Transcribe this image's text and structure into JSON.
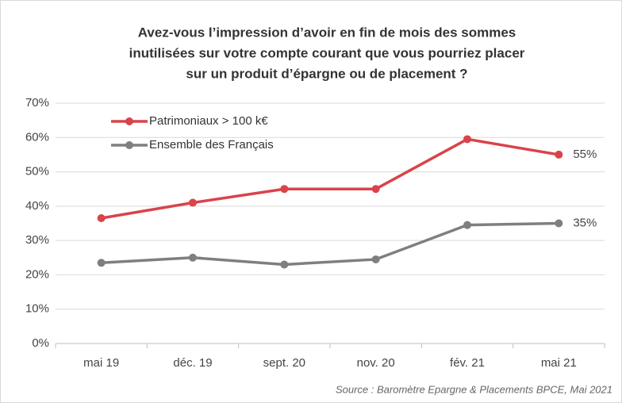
{
  "chart_data": {
    "type": "line",
    "title": [
      "Avez-vous l’impression d’avoir en fin de mois des sommes",
      "inutilisées sur votre compte courant que vous pourriez placer",
      "sur un produit d’épargne ou de placement ?"
    ],
    "categories": [
      "mai 19",
      "déc. 19",
      "sept. 20",
      "nov. 20",
      "fév. 21",
      "mai 21"
    ],
    "series": [
      {
        "name": "Patrimoniaux > 100 k€",
        "color": "#d9434a",
        "values": [
          36.5,
          41,
          45,
          45,
          59.5,
          55
        ],
        "value_labels": [
          null,
          null,
          null,
          null,
          null,
          "55%"
        ]
      },
      {
        "name": "Ensemble des Français",
        "color": "#7f7f7f",
        "values": [
          23.5,
          25,
          23,
          24.5,
          34.5,
          35
        ],
        "value_labels": [
          null,
          null,
          null,
          null,
          null,
          "35%"
        ]
      }
    ],
    "ylim": [
      0,
      70
    ],
    "yticks": [
      {
        "value": 0,
        "label": "0%"
      },
      {
        "value": 10,
        "label": "10%"
      },
      {
        "value": 20,
        "label": "20%"
      },
      {
        "value": 30,
        "label": "30%"
      },
      {
        "value": 40,
        "label": "40%"
      },
      {
        "value": 50,
        "label": "50%"
      },
      {
        "value": 60,
        "label": "60%"
      },
      {
        "value": 70,
        "label": "70%"
      }
    ],
    "grid": true,
    "legend": "upper left",
    "source": "Source : Baromètre Epargne & Placements BPCE, Mai 2021"
  }
}
